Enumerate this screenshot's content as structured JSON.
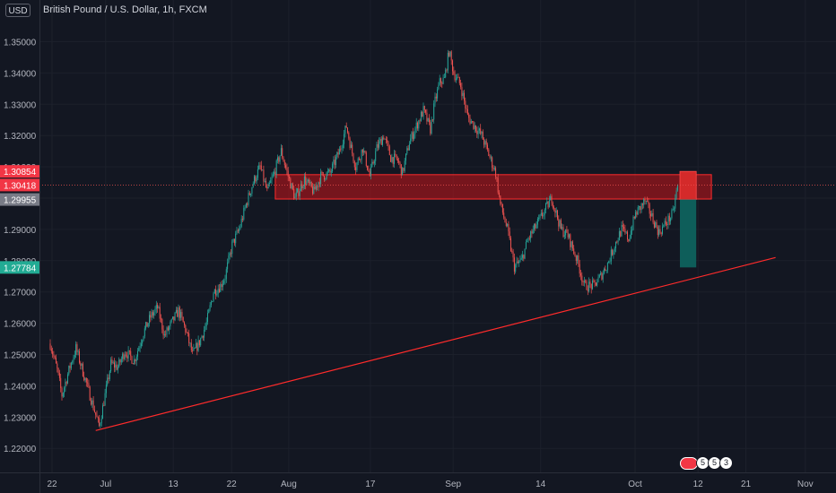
{
  "header": {
    "currency": "USD",
    "title": "British Pound / U.S. Dollar, 1h, FXCM"
  },
  "chart_data": {
    "type": "candlestick",
    "symbol": "GBPUSD",
    "interval": "1h",
    "ylim": [
      1.2145,
      1.3545
    ],
    "yticks": [
      1.22,
      1.23,
      1.24,
      1.25,
      1.26,
      1.27,
      1.28,
      1.29,
      1.3,
      1.31,
      1.32,
      1.33,
      1.34,
      1.35
    ],
    "ytick_labels": [
      "1.22000",
      "1.23000",
      "1.24000",
      "1.25000",
      "1.26000",
      "1.27000",
      "1.28000",
      "1.29000",
      "1.30000",
      "1.31000",
      "1.32000",
      "1.33000",
      "1.34000",
      "1.35000"
    ],
    "xtick_labels": [
      "22",
      "Jul",
      "13",
      "22",
      "Aug",
      "17",
      "Sep",
      "14",
      "Oct",
      "12",
      "21",
      "Nov"
    ],
    "xtick_index": [
      0,
      46,
      104,
      154,
      203,
      273,
      344,
      419,
      500,
      554,
      595,
      646
    ],
    "price_path": [
      [
        0,
        1.2535
      ],
      [
        6,
        1.245
      ],
      [
        10,
        1.237
      ],
      [
        16,
        1.245
      ],
      [
        22,
        1.252
      ],
      [
        30,
        1.242
      ],
      [
        38,
        1.232
      ],
      [
        42,
        1.227
      ],
      [
        46,
        1.235
      ],
      [
        52,
        1.247
      ],
      [
        58,
        1.246
      ],
      [
        64,
        1.251
      ],
      [
        72,
        1.248
      ],
      [
        80,
        1.257
      ],
      [
        86,
        1.262
      ],
      [
        92,
        1.265
      ],
      [
        98,
        1.256
      ],
      [
        104,
        1.26
      ],
      [
        110,
        1.264
      ],
      [
        116,
        1.258
      ],
      [
        122,
        1.25
      ],
      [
        128,
        1.254
      ],
      [
        134,
        1.26
      ],
      [
        140,
        1.27
      ],
      [
        146,
        1.272
      ],
      [
        150,
        1.275
      ],
      [
        156,
        1.285
      ],
      [
        162,
        1.29
      ],
      [
        168,
        1.298
      ],
      [
        174,
        1.305
      ],
      [
        180,
        1.31
      ],
      [
        186,
        1.302
      ],
      [
        192,
        1.308
      ],
      [
        198,
        1.315
      ],
      [
        204,
        1.307
      ],
      [
        210,
        1.3
      ],
      [
        218,
        1.306
      ],
      [
        226,
        1.302
      ],
      [
        232,
        1.307
      ],
      [
        240,
        1.308
      ],
      [
        248,
        1.315
      ],
      [
        254,
        1.323
      ],
      [
        258,
        1.316
      ],
      [
        262,
        1.31
      ],
      [
        268,
        1.316
      ],
      [
        274,
        1.307
      ],
      [
        280,
        1.316
      ],
      [
        286,
        1.32
      ],
      [
        292,
        1.313
      ],
      [
        298,
        1.312
      ],
      [
        302,
        1.308
      ],
      [
        308,
        1.318
      ],
      [
        314,
        1.323
      ],
      [
        320,
        1.328
      ],
      [
        326,
        1.322
      ],
      [
        330,
        1.331
      ],
      [
        334,
        1.337
      ],
      [
        338,
        1.338
      ],
      [
        342,
        1.347
      ],
      [
        346,
        1.34
      ],
      [
        352,
        1.336
      ],
      [
        358,
        1.326
      ],
      [
        364,
        1.323
      ],
      [
        370,
        1.32
      ],
      [
        376,
        1.314
      ],
      [
        382,
        1.308
      ],
      [
        386,
        1.298
      ],
      [
        392,
        1.29
      ],
      [
        398,
        1.278
      ],
      [
        404,
        1.28
      ],
      [
        410,
        1.287
      ],
      [
        418,
        1.292
      ],
      [
        424,
        1.296
      ],
      [
        430,
        1.3
      ],
      [
        438,
        1.29
      ],
      [
        444,
        1.288
      ],
      [
        452,
        1.28
      ],
      [
        458,
        1.272
      ],
      [
        466,
        1.272
      ],
      [
        472,
        1.275
      ],
      [
        478,
        1.279
      ],
      [
        484,
        1.285
      ],
      [
        490,
        1.29
      ],
      [
        496,
        1.287
      ],
      [
        502,
        1.295
      ],
      [
        510,
        1.299
      ],
      [
        516,
        1.294
      ],
      [
        522,
        1.289
      ],
      [
        528,
        1.292
      ],
      [
        534,
        1.295
      ],
      [
        538,
        1.3042
      ]
    ],
    "trendline": {
      "x": [
        39,
        622
      ],
      "y": [
        1.2257,
        1.281
      ],
      "color": "#ff2b2b"
    },
    "resistance_zone": {
      "x": [
        193,
        567
      ],
      "y": [
        1.2997,
        1.3075
      ],
      "color": "#ff2b2b"
    },
    "position_tool": {
      "x": [
        540,
        554
      ],
      "entry": 1.29955,
      "stop": 1.30854,
      "target": 1.27784,
      "stop_color": "#d42a2a",
      "target_color": "#0e5e5a"
    },
    "price_labels": [
      {
        "text": "1.30854",
        "value": 1.30854,
        "color": "#f23645"
      },
      {
        "text": "1.30418",
        "value": 1.30418,
        "color": "#f23645"
      },
      {
        "text": "1.29955",
        "value": 1.29955,
        "color": "#787b86"
      },
      {
        "text": "1.27784",
        "value": 1.27784,
        "color": "#22ab94"
      }
    ],
    "colors": {
      "up": "#26a69a",
      "down": "#ef5350",
      "background": "#131722",
      "text": "#b2b5be",
      "grid": "#1c202b"
    }
  },
  "badges": {
    "events": [
      "5",
      "5",
      "3"
    ]
  }
}
